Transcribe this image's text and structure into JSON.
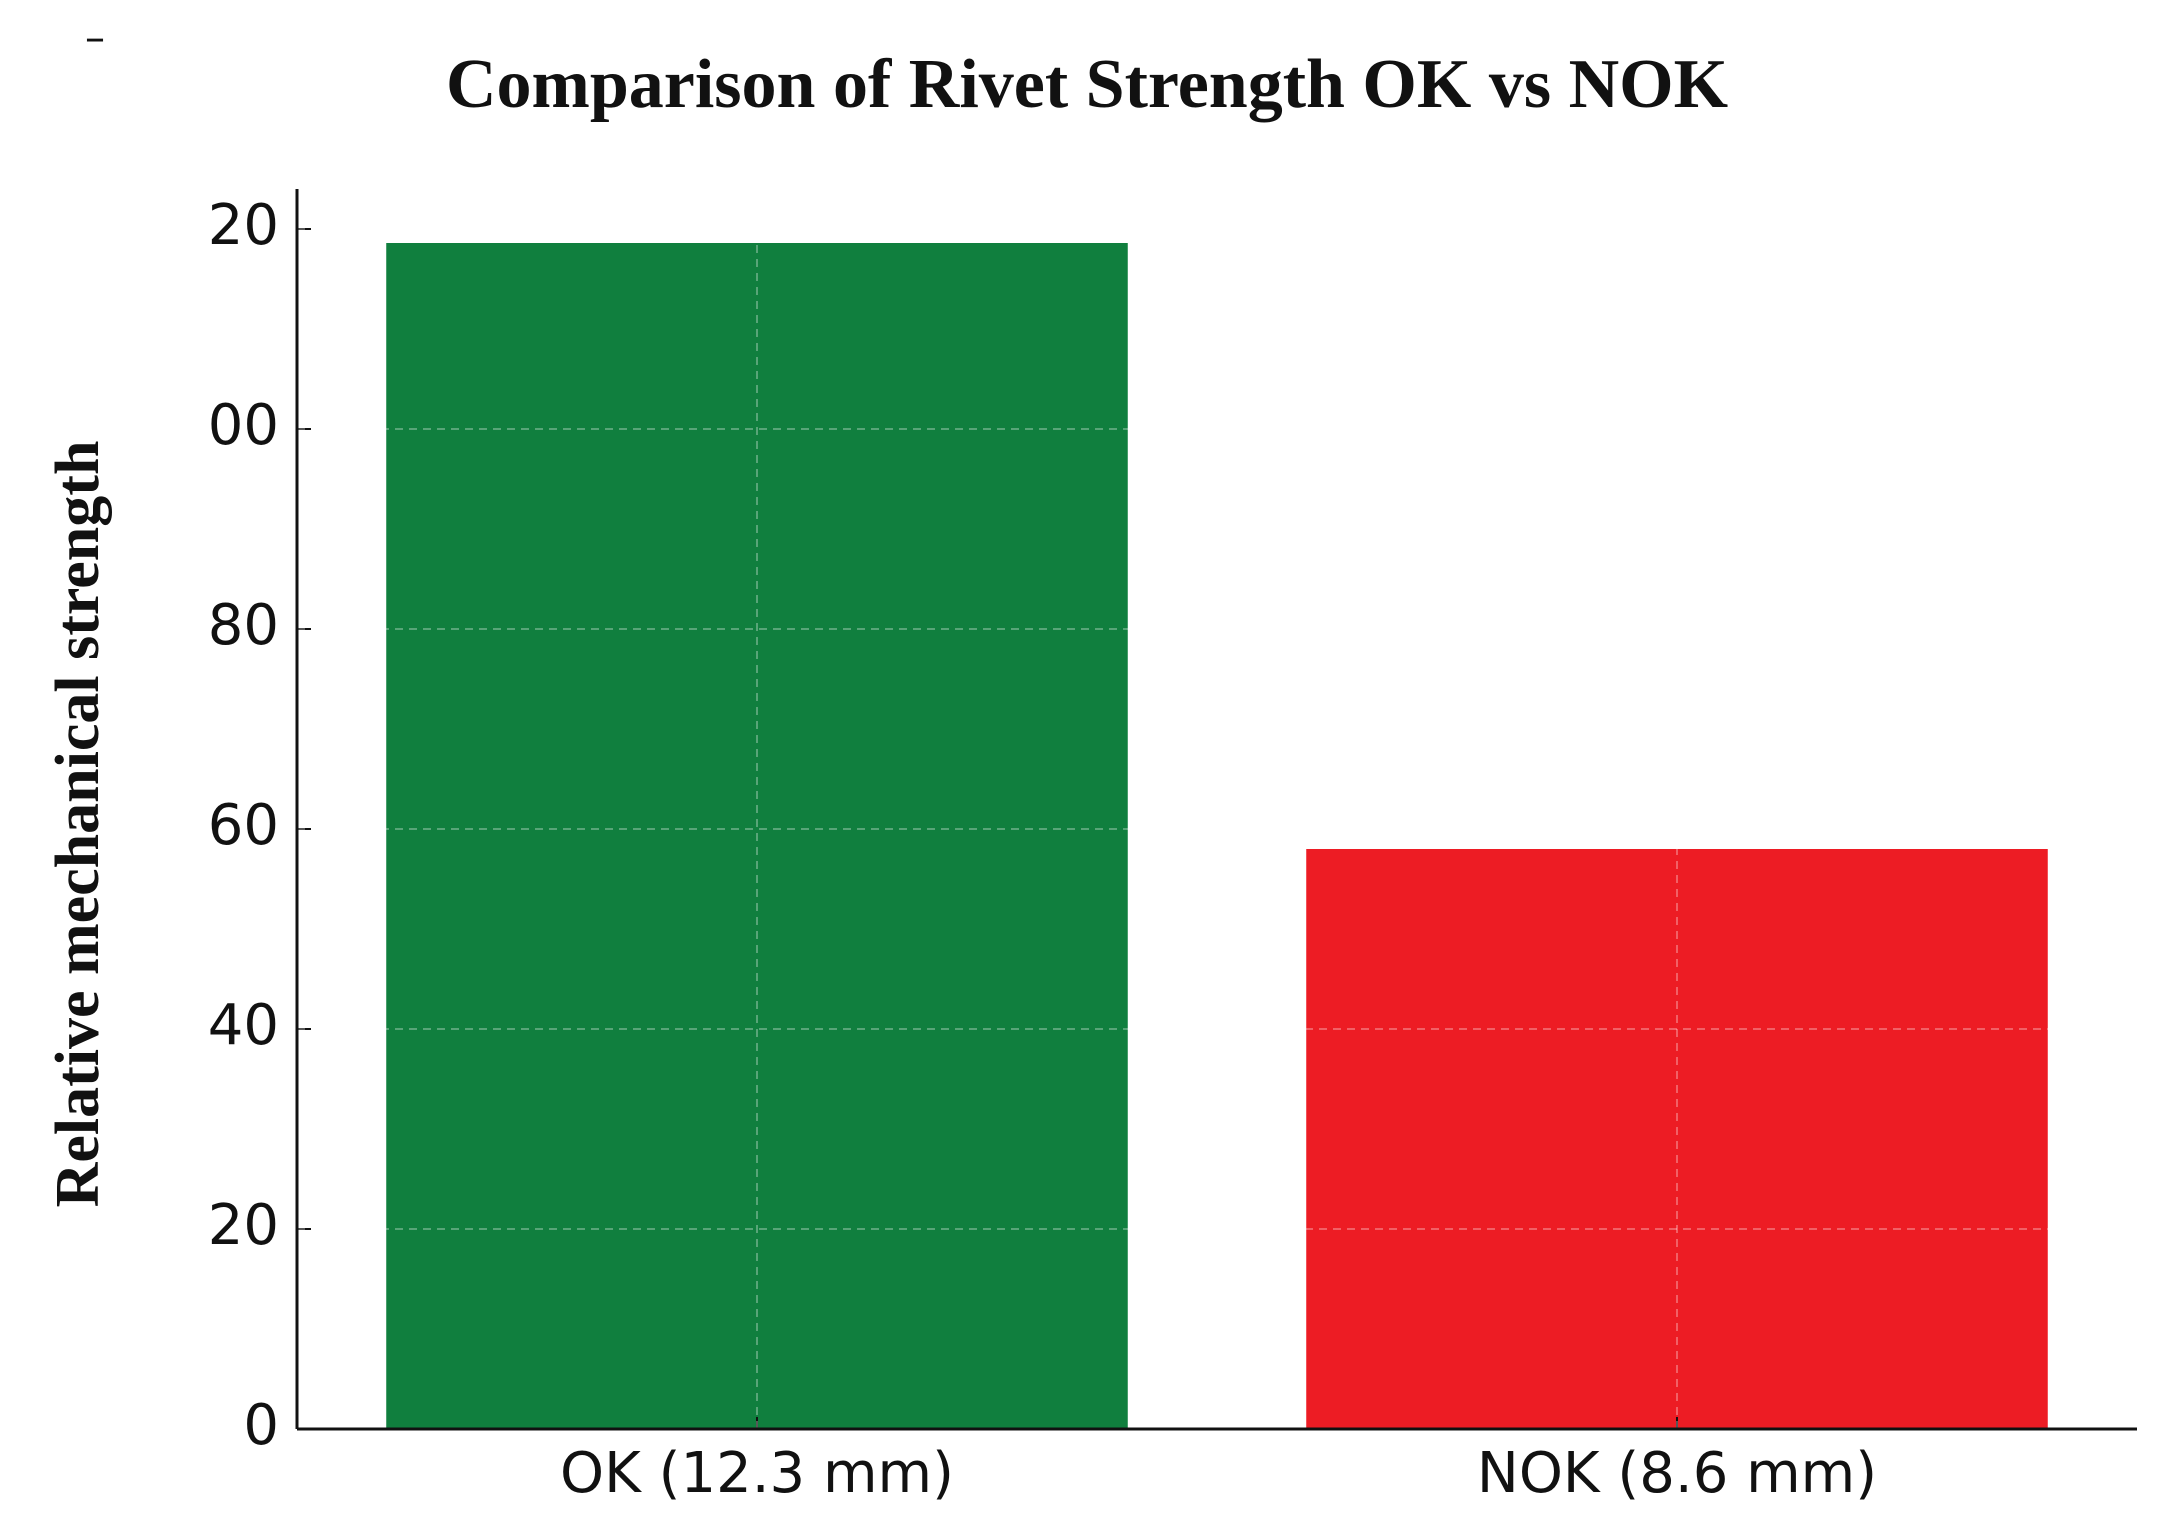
{
  "chart_data": {
    "type": "bar",
    "title": "Comparison of Rivet Strength OK vs NOK",
    "annotation": "–",
    "ylabel": "Relative mechanical strength",
    "categories": [
      "OK (12.3 mm)",
      "NOK (8.6 mm)"
    ],
    "values": [
      118.6,
      58
    ],
    "colors": [
      "#107f3e",
      "#ed1c24"
    ],
    "ylim": [
      0,
      124
    ],
    "yticks": [
      0,
      20,
      40,
      60,
      80,
      {
        "value": 100,
        "label": "00"
      },
      {
        "value": 120,
        "label": "20"
      }
    ],
    "grid": true
  }
}
